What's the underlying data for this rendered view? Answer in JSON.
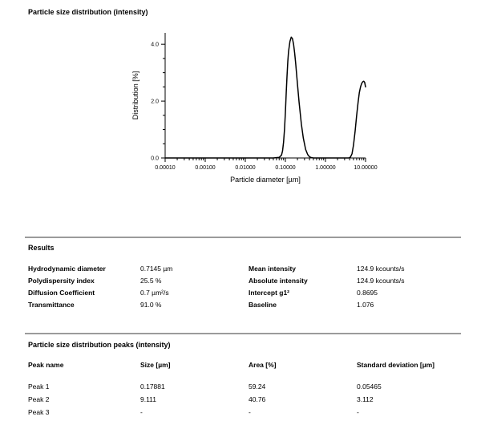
{
  "chart_data": {
    "type": "line",
    "title": "Particle size distribution (intensity)",
    "xlabel": "Particle diameter [µm]",
    "ylabel": "Distribution [%]",
    "x_scale": "log",
    "xlim": [
      0.0001,
      10
    ],
    "ylim": [
      0,
      4.4
    ],
    "grid": false,
    "legend": "none",
    "x_tick_labels": [
      "0.00010",
      "0.00100",
      "0.01000",
      "0.10000",
      "1.00000",
      "10.00000"
    ],
    "y_tick_labels": [
      "0.0",
      "2.0",
      "4.0"
    ],
    "y_tick_values": [
      0,
      2,
      4
    ],
    "series_color": "#000000",
    "x": [
      0.0001,
      0.001,
      0.01,
      0.05,
      0.07,
      0.08,
      0.085,
      0.09,
      0.095,
      0.1,
      0.105,
      0.11,
      0.115,
      0.12,
      0.13,
      0.14,
      0.15,
      0.16,
      0.17,
      0.18,
      0.2,
      0.22,
      0.25,
      0.28,
      0.32,
      0.36,
      0.4,
      0.45,
      0.5,
      1.0,
      2.0,
      3.0,
      3.8,
      4.2,
      4.6,
      5.0,
      5.5,
      6.0,
      6.5,
      7.0,
      7.5,
      8.0,
      8.5,
      9.0,
      9.5,
      10.0
    ],
    "y": [
      0,
      0,
      0,
      0,
      0.02,
      0.1,
      0.25,
      0.55,
      1.0,
      1.6,
      2.3,
      2.9,
      3.4,
      3.75,
      4.1,
      4.25,
      4.2,
      4.0,
      3.7,
      3.35,
      2.6,
      1.95,
      1.2,
      0.7,
      0.3,
      0.12,
      0.04,
      0.01,
      0,
      0,
      0,
      0,
      0,
      0.03,
      0.15,
      0.45,
      0.95,
      1.5,
      1.95,
      2.3,
      2.5,
      2.62,
      2.68,
      2.7,
      2.66,
      2.5
    ]
  },
  "results": {
    "heading": "Results",
    "left": [
      {
        "label": "Hydrodynamic diameter",
        "value": "0.7145 µm"
      },
      {
        "label": "Polydispersity index",
        "value": "25.5 %"
      },
      {
        "label": "Diffusion Coefficient",
        "value": "0.7 µm²/s"
      },
      {
        "label": "Transmittance",
        "value": "91.0 %"
      }
    ],
    "right": [
      {
        "label": "Mean intensity",
        "value": "124.9 kcounts/s"
      },
      {
        "label": "Absolute intensity",
        "value": "124.9 kcounts/s"
      },
      {
        "label": "Intercept g1²",
        "value": "0.8695"
      },
      {
        "label": "Baseline",
        "value": "1.076"
      }
    ]
  },
  "peaks": {
    "heading": "Particle size distribution peaks (intensity)",
    "columns": [
      "Peak name",
      "Size [µm]",
      "Area [%]",
      "Standard deviation [µm]"
    ],
    "rows": [
      [
        "Peak 1",
        "0.17881",
        "59.24",
        "0.05465"
      ],
      [
        "Peak 2",
        "9.111",
        "40.76",
        "3.112"
      ],
      [
        "Peak 3",
        "-",
        "-",
        "-"
      ]
    ]
  }
}
